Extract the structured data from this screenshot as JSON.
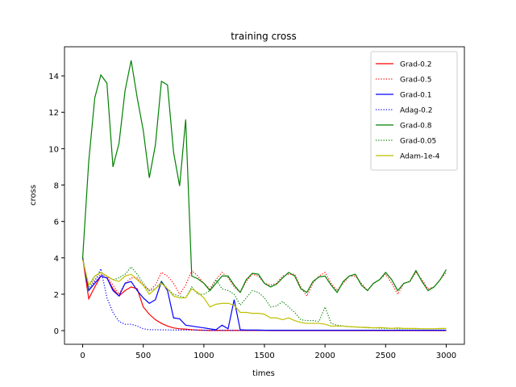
{
  "chart_data": {
    "type": "line",
    "title": "training cross",
    "x_label": "times",
    "y_label": "cross",
    "x": [
      0,
      50,
      100,
      150,
      200,
      250,
      300,
      350,
      400,
      450,
      500,
      550,
      600,
      650,
      700,
      750,
      800,
      850,
      900,
      950,
      1000,
      1050,
      1100,
      1150,
      1200,
      1250,
      1300,
      1350,
      1400,
      1450,
      1500,
      1550,
      1600,
      1650,
      1700,
      1750,
      1800,
      1850,
      1900,
      1950,
      2000,
      2050,
      2100,
      2150,
      2200,
      2250,
      2300,
      2350,
      2400,
      2450,
      2500,
      2550,
      2600,
      2650,
      2700,
      2750,
      2800,
      2850,
      2900,
      2950,
      3000
    ],
    "series": [
      {
        "name": "Grad-0.2",
        "color": "#ff0000",
        "style": "solid",
        "values": [
          4,
          1.75,
          2.4,
          3.0,
          2.9,
          2.3,
          1.9,
          2.2,
          2.4,
          2.3,
          1.3,
          0.9,
          0.6,
          0.4,
          0.25,
          0.15,
          0.1,
          0.08,
          0.05,
          0.03,
          0.02,
          0.01,
          0.01,
          0.01,
          0.01,
          0.01,
          0.01,
          0.01,
          0.01,
          0.01,
          0.01,
          0,
          0,
          0,
          0,
          0,
          0,
          0,
          0,
          0,
          0,
          0,
          0,
          0,
          0,
          0,
          0,
          0,
          0,
          0,
          0,
          0,
          0,
          0,
          0,
          0,
          0,
          0,
          0,
          0,
          0
        ]
      },
      {
        "name": "Grad-0.5",
        "color": "#ff0000",
        "style": "dotted",
        "values": [
          4,
          2.2,
          2.8,
          3.1,
          3.0,
          2.5,
          2.0,
          2.6,
          2.9,
          2.9,
          2.5,
          2.2,
          2.5,
          3.2,
          3.0,
          2.6,
          2.0,
          2.5,
          3.3,
          3.0,
          2.6,
          2.3,
          2.8,
          3.2,
          2.9,
          2.4,
          2.1,
          2.7,
          3.1,
          3.0,
          2.6,
          2.5,
          2.6,
          3.0,
          3.1,
          3.1,
          2.4,
          1.9,
          2.6,
          3.0,
          3.2,
          2.6,
          2.2,
          2.6,
          3.0,
          3.0,
          2.6,
          2.2,
          2.6,
          2.8,
          3.1,
          2.6,
          2.0,
          2.6,
          2.7,
          3.2,
          2.8,
          2.3,
          2.4,
          2.8,
          3.2
        ]
      },
      {
        "name": "Grad-0.1",
        "color": "#0000ff",
        "style": "solid",
        "values": [
          4,
          2.2,
          2.6,
          3.0,
          2.9,
          2.2,
          1.9,
          2.6,
          2.7,
          2.2,
          1.8,
          1.5,
          1.7,
          2.7,
          2.2,
          0.7,
          0.65,
          0.3,
          0.25,
          0.2,
          0.15,
          0.1,
          0.05,
          0.3,
          0.1,
          1.7,
          0.05,
          0.03,
          0.03,
          0.03,
          0.02,
          0.02,
          0.02,
          0.02,
          0.02,
          0.02,
          0.02,
          0.02,
          0.02,
          0.02,
          0.02,
          0.02,
          0.02,
          0.02,
          0.02,
          0.02,
          0.02,
          0.02,
          0.02,
          0.02,
          0.02,
          0.02,
          0.02,
          0.02,
          0.02,
          0.02,
          0.02,
          0.02,
          0.02,
          0.02,
          0.02
        ]
      },
      {
        "name": "Adag-0.2",
        "color": "#0000ff",
        "style": "dotted",
        "values": [
          4,
          2.2,
          2.7,
          3.4,
          1.8,
          1.0,
          0.5,
          0.35,
          0.35,
          0.25,
          0.1,
          0.05,
          0.05,
          0.04,
          0.04,
          0.03,
          0.03,
          0.03,
          0.03,
          0.03,
          0.02,
          0.02,
          0.02,
          0.02,
          0.02,
          0.02,
          0.02,
          0.02,
          0.02,
          0.02,
          0.02,
          0.02,
          0.02,
          0.02,
          0.02,
          0.02,
          0.02,
          0.02,
          0.02,
          0.02,
          0.02,
          0.02,
          0.02,
          0.02,
          0.02,
          0.02,
          0.02,
          0.02,
          0.02,
          0.02,
          0.02,
          0.02,
          0.02,
          0.02,
          0.02,
          0.02,
          0.02,
          0.02,
          0.02,
          0.02,
          0.02
        ]
      },
      {
        "name": "Grad-0.8",
        "color": "#008000",
        "style": "solid",
        "values": [
          4,
          9.3,
          12.8,
          14.05,
          13.6,
          9.0,
          10.3,
          13.2,
          14.85,
          12.8,
          11.0,
          8.4,
          10.2,
          13.7,
          13.5,
          9.8,
          7.95,
          11.6,
          3.0,
          2.85,
          2.6,
          2.2,
          2.6,
          3.0,
          3.0,
          2.5,
          2.1,
          2.8,
          3.15,
          3.1,
          2.6,
          2.4,
          2.55,
          2.9,
          3.2,
          3.0,
          2.3,
          2.1,
          2.7,
          2.95,
          3.0,
          2.5,
          2.1,
          2.7,
          3.0,
          3.1,
          2.5,
          2.2,
          2.6,
          2.8,
          3.2,
          2.8,
          2.2,
          2.6,
          2.7,
          3.3,
          2.7,
          2.2,
          2.4,
          2.8,
          3.35
        ]
      },
      {
        "name": "Grad-0.05",
        "color": "#008000",
        "style": "dotted",
        "values": [
          4,
          2.3,
          3.0,
          3.2,
          3.0,
          2.8,
          2.9,
          3.1,
          3.5,
          3.1,
          2.6,
          2.2,
          2.3,
          2.7,
          2.3,
          2.0,
          1.9,
          1.8,
          2.4,
          2.0,
          2.0,
          2.2,
          2.8,
          2.3,
          2.2,
          2.0,
          1.4,
          1.8,
          2.2,
          2.1,
          1.8,
          1.3,
          1.35,
          1.6,
          1.3,
          1.0,
          0.6,
          0.55,
          0.55,
          0.5,
          1.3,
          0.4,
          0.3,
          0.25,
          0.22,
          0.2,
          0.18,
          0.15,
          0.15,
          0.13,
          0.12,
          0.12,
          0.1,
          0.1,
          0.1,
          0.1,
          0.1,
          0.1,
          0.1,
          0.1,
          0.1
        ]
      },
      {
        "name": "Adam-1e-4",
        "color": "#bfbf00",
        "style": "solid",
        "values": [
          3.9,
          2.5,
          3.0,
          3.2,
          3.0,
          2.8,
          2.7,
          3.0,
          3.1,
          2.8,
          2.5,
          2.0,
          2.3,
          2.6,
          2.3,
          1.9,
          1.8,
          1.8,
          2.3,
          2.1,
          1.8,
          1.3,
          1.45,
          1.5,
          1.5,
          1.4,
          1.0,
          1.0,
          0.95,
          0.95,
          0.9,
          0.7,
          0.7,
          0.6,
          0.7,
          0.55,
          0.45,
          0.4,
          0.4,
          0.4,
          0.35,
          0.25,
          0.25,
          0.25,
          0.22,
          0.2,
          0.18,
          0.18,
          0.15,
          0.17,
          0.15,
          0.12,
          0.15,
          0.12,
          0.12,
          0.12,
          0.1,
          0.1,
          0.1,
          0.12,
          0.12
        ]
      }
    ],
    "xlim": [
      -150,
      3150
    ],
    "ylim": [
      -0.75,
      15.6
    ],
    "xticks": [
      0,
      500,
      1000,
      1500,
      2000,
      2500,
      3000
    ],
    "yticks": [
      0,
      2,
      4,
      6,
      8,
      10,
      12,
      14
    ],
    "grid": false,
    "legend": "upper right"
  }
}
